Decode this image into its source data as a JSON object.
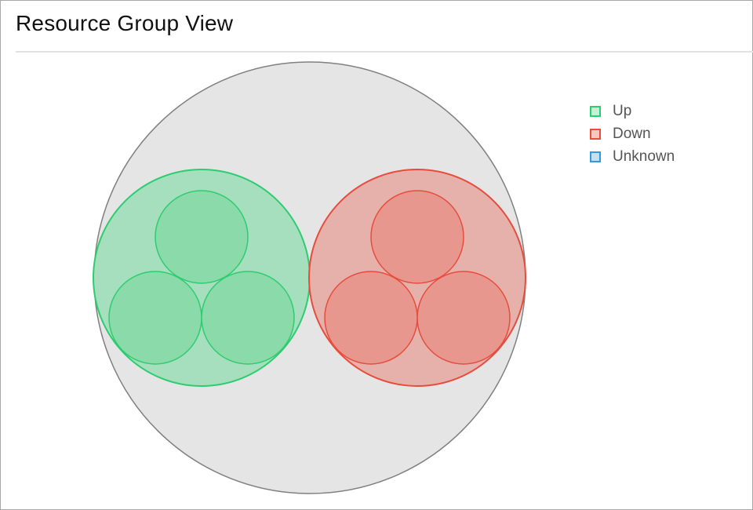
{
  "header": {
    "title": "Resource Group View"
  },
  "legend": [
    {
      "label": "Up",
      "stroke": "#2ecc71",
      "fill": "#c4f0d6"
    },
    {
      "label": "Down",
      "stroke": "#e74c3c",
      "fill": "#f6c6c1"
    },
    {
      "label": "Unknown",
      "stroke": "#3498db",
      "fill": "#c5def2"
    }
  ],
  "diagram": {
    "root_fill": "#e5e5e5",
    "root_stroke": "#808080",
    "groups": [
      {
        "status": "Up",
        "fill": "#a6dfbd",
        "stroke": "#2ecc71",
        "child_fill": "#8adba9",
        "children": 3
      },
      {
        "status": "Down",
        "fill": "#e6b1ab",
        "stroke": "#e74c3c",
        "child_fill": "#e8978f",
        "children": 3
      }
    ]
  }
}
